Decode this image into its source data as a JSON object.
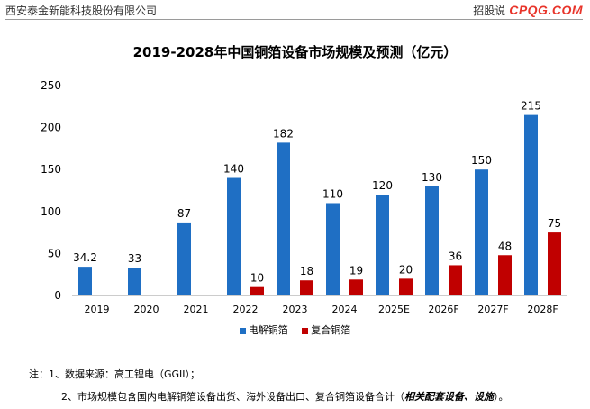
{
  "header": {
    "company": "西安泰金新能科技股份有限公司",
    "doc_type": "招股说",
    "watermark": "CPQG.COM"
  },
  "chart_data": {
    "type": "bar",
    "title": "2019-2028年中国铜箔设备市场规模及预测（亿元）",
    "xlabel": "",
    "ylabel": "",
    "categories": [
      "2019",
      "2020",
      "2021",
      "2022",
      "2023",
      "2024",
      "2025E",
      "2026F",
      "2027F",
      "2028F"
    ],
    "series": [
      {
        "name": "电解铜箔",
        "color": "#1f6fc4",
        "values": [
          34.2,
          33,
          87,
          140,
          182,
          110,
          120,
          130,
          150,
          215
        ]
      },
      {
        "name": "复合铜箔",
        "color": "#c00000",
        "values": [
          null,
          null,
          null,
          10,
          18,
          19,
          20,
          36,
          48,
          75
        ]
      }
    ],
    "ylim": [
      0,
      250
    ],
    "yticks": [
      0,
      50,
      100,
      150,
      200,
      250
    ],
    "grid": false,
    "legend_position": "bottom"
  },
  "notes": {
    "line1": "注：1、数据来源：高工锂电（GGII）；",
    "line2_prefix": "2、市场规模包含国内电解铜箔设备出货、海外设备出口、复合铜箔设备合计（",
    "line2_bold": "相关配套设备、设施",
    "line2_suffix": "）。"
  }
}
